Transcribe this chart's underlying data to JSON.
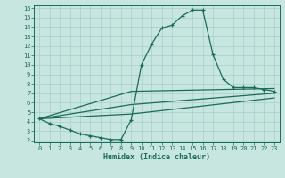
{
  "xlabel": "Humidex (Indice chaleur)",
  "ylabel": "",
  "xlim": [
    -0.5,
    23.5
  ],
  "ylim": [
    1.8,
    16.3
  ],
  "bg_color": "#c8e6e0",
  "line_color": "#1a6b5a",
  "grid_color": "#a8cec8",
  "series": [
    {
      "x": [
        0,
        1,
        2,
        3,
        4,
        5,
        6,
        7,
        8,
        9,
        10,
        11,
        12,
        13,
        14,
        15,
        16,
        17,
        18,
        19,
        20,
        21,
        22,
        23
      ],
      "y": [
        4.3,
        3.8,
        3.5,
        3.1,
        2.7,
        2.5,
        2.3,
        2.1,
        2.1,
        4.2,
        10.0,
        12.2,
        13.9,
        14.2,
        15.2,
        15.8,
        15.8,
        11.1,
        8.5,
        7.6,
        7.6,
        7.6,
        7.4,
        7.2
      ]
    },
    {
      "x": [
        0,
        9,
        23
      ],
      "y": [
        4.3,
        7.2,
        7.5
      ]
    },
    {
      "x": [
        0,
        9,
        23
      ],
      "y": [
        4.3,
        5.8,
        7.0
      ]
    },
    {
      "x": [
        0,
        9,
        23
      ],
      "y": [
        4.3,
        4.8,
        6.5
      ]
    }
  ],
  "yticks": [
    2,
    3,
    4,
    5,
    6,
    7,
    8,
    9,
    10,
    11,
    12,
    13,
    14,
    15,
    16
  ],
  "xticks": [
    0,
    1,
    2,
    3,
    4,
    5,
    6,
    7,
    8,
    9,
    10,
    11,
    12,
    13,
    14,
    15,
    16,
    17,
    18,
    19,
    20,
    21,
    22,
    23
  ]
}
